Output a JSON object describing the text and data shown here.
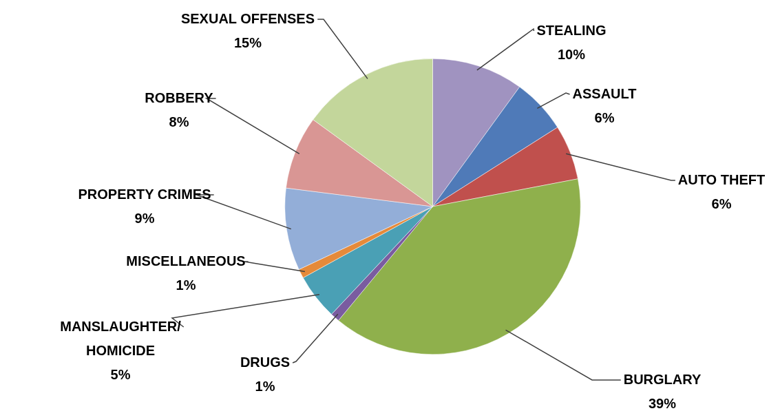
{
  "chart_data": {
    "type": "pie",
    "categories": [
      "STEALING",
      "ASSAULT",
      "AUTO THEFT",
      "BURGLARY",
      "DRUGS",
      "MANSLAUGHTER/ HOMICIDE",
      "MISCELLANEOUS",
      "PROPERTY CRIMES",
      "ROBBERY",
      "SEXUAL OFFENSES"
    ],
    "values": [
      10,
      6,
      6,
      39,
      1,
      5,
      1,
      9,
      8,
      15
    ],
    "colors": [
      "#a093c0",
      "#4f7ab8",
      "#c0504d",
      "#8fb04c",
      "#7a5ca0",
      "#4aa0b5",
      "#e58a3a",
      "#93aed8",
      "#d99694",
      "#c3d69b"
    ],
    "value_labels": [
      "10%",
      "6%",
      "6%",
      "39%",
      "1%",
      "5%",
      "1%",
      "9%",
      "8%",
      "15%"
    ],
    "legend": false
  }
}
